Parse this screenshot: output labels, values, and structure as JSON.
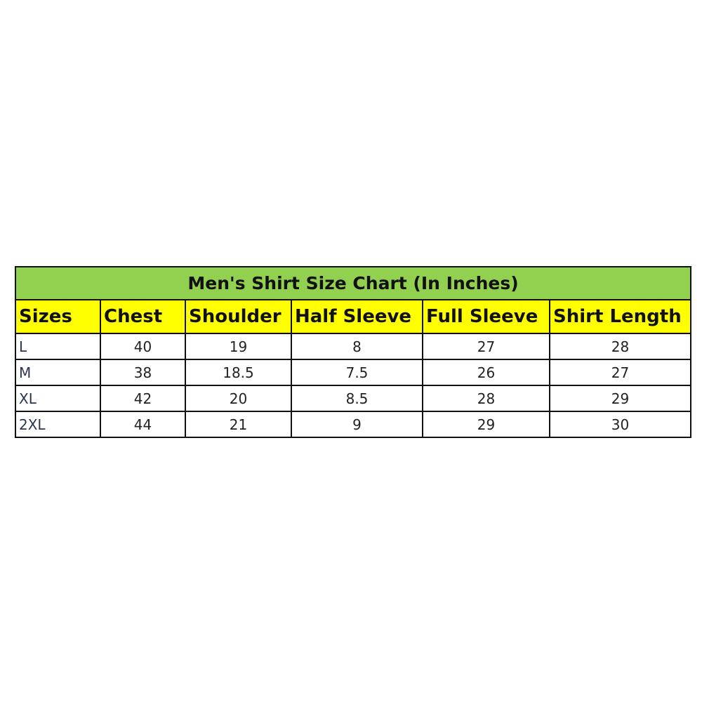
{
  "title": "Men's Shirt Size Chart (In Inches)",
  "colors": {
    "title_bg": "#92d050",
    "header_bg": "#ffff00"
  },
  "headers": [
    "Sizes",
    "Chest",
    "Shoulder",
    "Half Sleeve",
    "Full Sleeve",
    "Shirt Length"
  ],
  "rows": [
    [
      "L",
      "40",
      "19",
      "8",
      "27",
      "28"
    ],
    [
      "M",
      "38",
      "18.5",
      "7.5",
      "26",
      "27"
    ],
    [
      "XL",
      "42",
      "20",
      "8.5",
      "28",
      "29"
    ],
    [
      "2XL",
      "44",
      "21",
      "9",
      "29",
      "30"
    ]
  ]
}
